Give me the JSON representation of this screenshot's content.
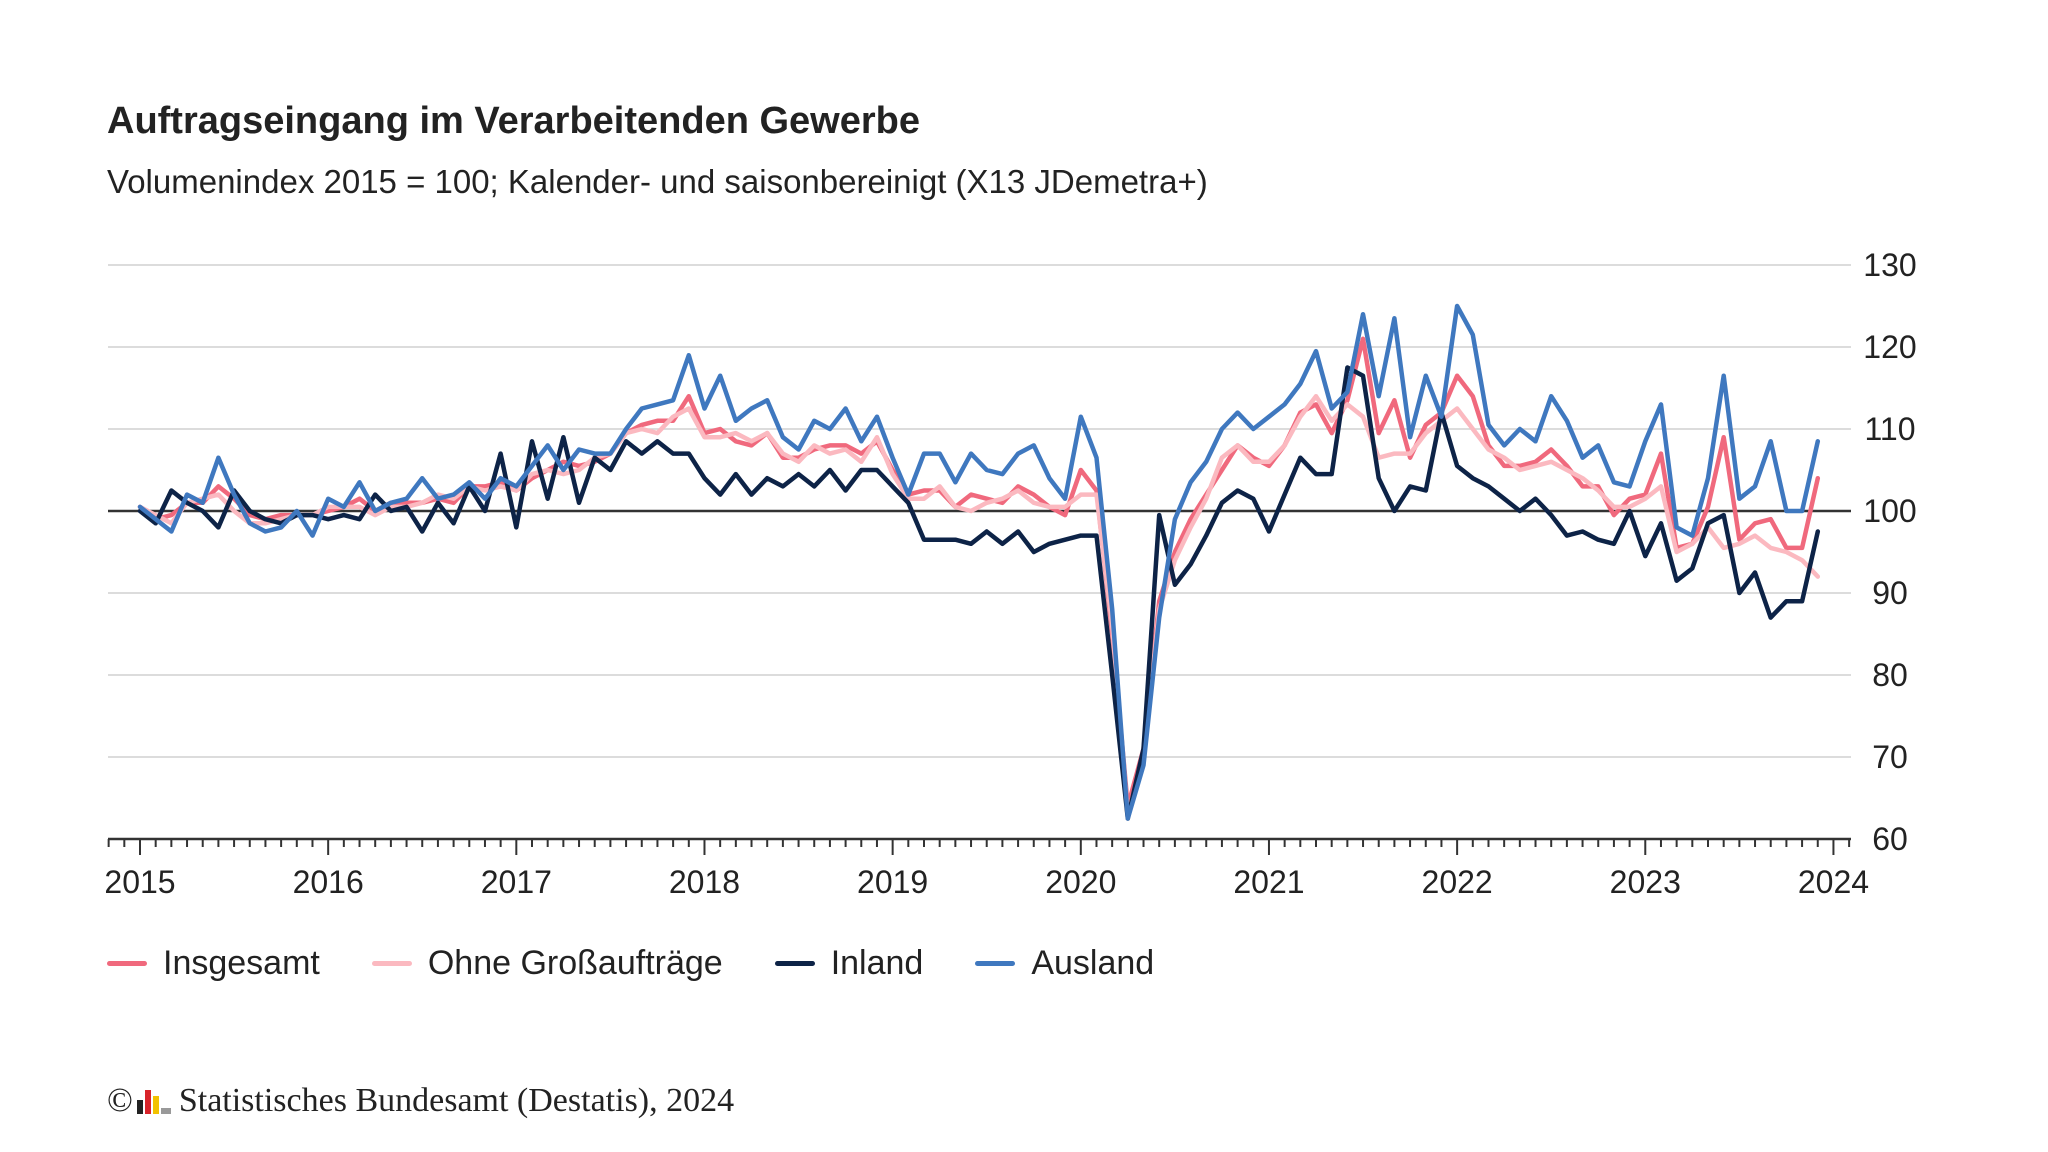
{
  "header": {
    "title": "Auftragseingang im Verarbeitenden Gewerbe",
    "subtitle": "Volumenindex 2015 = 100; Kalender- und saisonbereinigt (X13 JDemetra+)"
  },
  "footer": {
    "copyright": "©",
    "source": "Statistisches Bundesamt (Destatis), 2024"
  },
  "chart_data": {
    "type": "line",
    "title": "Auftragseingang im Verarbeitenden Gewerbe",
    "subtitle": "Volumenindex 2015 = 100; Kalender- und saisonbereinigt (X13 JDemetra+)",
    "x_start": "2015-01",
    "x_end": "2023-12",
    "frequency": "monthly",
    "x_tick_labels": [
      "2015",
      "2016",
      "2017",
      "2018",
      "2019",
      "2020",
      "2021",
      "2022",
      "2023",
      "2024"
    ],
    "y_tick_labels": [
      "130",
      "120",
      "110",
      "100",
      "90",
      "80",
      "70",
      "60"
    ],
    "ylim": [
      60,
      130
    ],
    "y_axis_side": "right",
    "reference_line": 100,
    "grid": true,
    "legend_position": "bottom",
    "series": [
      {
        "name": "Insgesamt",
        "color": "#f0697d",
        "values": [
          100.5,
          99,
          99.5,
          101,
          101,
          103,
          101.5,
          99.5,
          99,
          99.5,
          99.5,
          99.5,
          100,
          100.5,
          101.5,
          100,
          101,
          101,
          101,
          101.5,
          101,
          103,
          103,
          103.5,
          102.5,
          104,
          105,
          106,
          105.5,
          106,
          107,
          109.5,
          110.5,
          111,
          111,
          114,
          109.5,
          110,
          108.5,
          108,
          109.5,
          106.5,
          106.5,
          107.5,
          108,
          108,
          107,
          108.5,
          105,
          102,
          102.5,
          102.5,
          100.5,
          102,
          101.5,
          101,
          103,
          102,
          100.5,
          99.5,
          105,
          102.5,
          85,
          64,
          71,
          89,
          95,
          99,
          102,
          105,
          108,
          106.5,
          105.5,
          108,
          112,
          113,
          109.5,
          113.5,
          121,
          109.5,
          113.5,
          106.5,
          110.5,
          112,
          116.5,
          114,
          108,
          105.5,
          105.5,
          106,
          107.5,
          105.5,
          103,
          103,
          99.5,
          101.5,
          102,
          107,
          95.5,
          96,
          100.5,
          109,
          96.5,
          98.5,
          99,
          95.5,
          95.5,
          104
        ]
      },
      {
        "name": "Ohne Großaufträge",
        "color": "#fbb9c0",
        "values": [
          100.5,
          99.5,
          98.5,
          101,
          101.5,
          102,
          100,
          98.5,
          98.5,
          99,
          99.5,
          99.5,
          100.5,
          100.5,
          100.5,
          99.5,
          100.5,
          100.5,
          101,
          102,
          101.5,
          103,
          102.5,
          103,
          102.5,
          104.5,
          105,
          104.5,
          105,
          106.5,
          107,
          109.5,
          110,
          109.5,
          111.5,
          112.5,
          109,
          109,
          109.5,
          108.5,
          109.5,
          107,
          106,
          108,
          107,
          107.5,
          106,
          109,
          104.5,
          101.5,
          101.5,
          103,
          100.5,
          100,
          101,
          101.5,
          102.5,
          101,
          100.5,
          100.5,
          102,
          102,
          86,
          63,
          70,
          88,
          94,
          98,
          101.5,
          106.5,
          108,
          106,
          106,
          108,
          111.5,
          114,
          111,
          113,
          111.5,
          106.5,
          107,
          107,
          109.5,
          111,
          112.5,
          110,
          107.5,
          106.5,
          105,
          105.5,
          106,
          105,
          104,
          102.5,
          100.5,
          100.5,
          101.5,
          103,
          95,
          96,
          98,
          95.5,
          96,
          97,
          95.5,
          95,
          94,
          92
        ]
      },
      {
        "name": "Inland",
        "color": "#0d2347",
        "values": [
          100,
          98.5,
          102.5,
          101,
          100,
          98,
          102.5,
          100,
          99,
          98.5,
          99.5,
          99.5,
          99,
          99.5,
          99,
          102,
          100,
          100.5,
          97.5,
          101,
          98.5,
          103,
          100,
          107,
          98,
          108.5,
          101.5,
          109,
          101,
          106.5,
          105,
          108.5,
          107,
          108.5,
          107,
          107,
          104,
          102,
          104.5,
          102,
          104,
          103,
          104.5,
          103,
          105,
          102.5,
          105,
          105,
          103,
          101,
          96.5,
          96.5,
          96.5,
          96,
          97.5,
          96,
          97.5,
          95,
          96,
          96.5,
          97,
          97,
          80,
          62.5,
          71,
          99.5,
          91,
          93.5,
          97,
          101,
          102.5,
          101.5,
          97.5,
          102,
          106.5,
          104.5,
          104.5,
          117.5,
          116.5,
          104,
          100,
          103,
          102.5,
          112,
          105.5,
          104,
          103,
          101.5,
          100,
          101.5,
          99.5,
          97,
          97.5,
          96.5,
          96,
          100,
          94.5,
          98.5,
          91.5,
          93,
          98.5,
          99.5,
          90,
          92.5,
          87,
          89,
          89,
          97.5
        ]
      },
      {
        "name": "Ausland",
        "color": "#3f78bf",
        "values": [
          100.5,
          99,
          97.5,
          102,
          101,
          106.5,
          102,
          98.5,
          97.5,
          98,
          100,
          97,
          101.5,
          100.5,
          103.5,
          100,
          101,
          101.5,
          104,
          101.5,
          102,
          103.5,
          101.5,
          104,
          103,
          105.5,
          108,
          105,
          107.5,
          107,
          107,
          110,
          112.5,
          113,
          113.5,
          119,
          112.5,
          116.5,
          111,
          112.5,
          113.5,
          109,
          107.5,
          111,
          110,
          112.5,
          108.5,
          111.5,
          106.5,
          102,
          107,
          107,
          103.5,
          107,
          105,
          104.5,
          107,
          108,
          104,
          101.5,
          111.5,
          106.5,
          88,
          62.5,
          69,
          87,
          99,
          103.5,
          106,
          110,
          112,
          110,
          111.5,
          113,
          115.5,
          119.5,
          112.5,
          114.5,
          124,
          114,
          123.5,
          109,
          116.5,
          111.5,
          125,
          121.5,
          110.5,
          108,
          110,
          108.5,
          114,
          111,
          106.5,
          108,
          103.5,
          103,
          108.5,
          113,
          98,
          97,
          104,
          116.5,
          101.5,
          103,
          108.5,
          100,
          100,
          108.5
        ]
      }
    ]
  }
}
